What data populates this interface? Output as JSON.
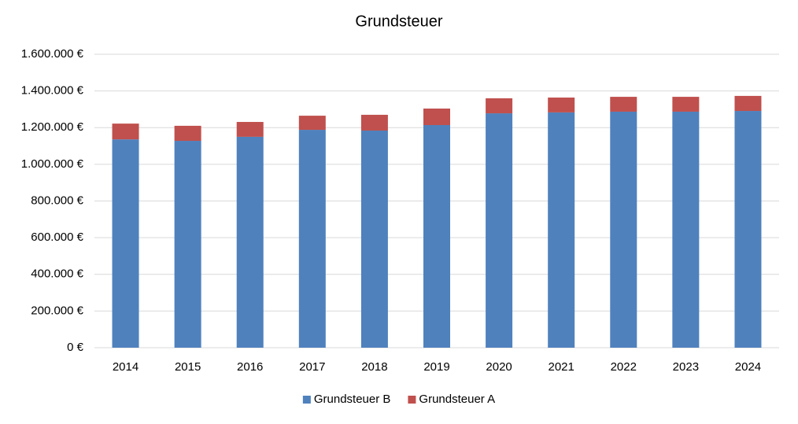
{
  "chart_data": {
    "type": "stacked_bar",
    "title": "Grundsteuer",
    "categories": [
      "2014",
      "2015",
      "2016",
      "2017",
      "2018",
      "2019",
      "2020",
      "2021",
      "2022",
      "2023",
      "2024"
    ],
    "series": [
      {
        "name": "Grundsteuer B",
        "color": "#4f81bd",
        "values": [
          1136000,
          1128000,
          1150000,
          1188000,
          1184000,
          1214000,
          1278000,
          1283000,
          1287000,
          1287000,
          1291000
        ]
      },
      {
        "name": "Grundsteuer A",
        "color": "#c0504d",
        "values": [
          86000,
          82000,
          81000,
          77000,
          86000,
          90000,
          82000,
          81000,
          81000,
          81000,
          82000
        ]
      }
    ],
    "ylim": [
      0,
      1600000
    ],
    "yticks": [
      {
        "value": 0,
        "label": "0 €"
      },
      {
        "value": 200000,
        "label": "200.000 €"
      },
      {
        "value": 400000,
        "label": "400.000 €"
      },
      {
        "value": 600000,
        "label": "600.000 €"
      },
      {
        "value": 800000,
        "label": "800.000 €"
      },
      {
        "value": 1000000,
        "label": "1.000.000 €"
      },
      {
        "value": 1200000,
        "label": "1.200.000 €"
      },
      {
        "value": 1400000,
        "label": "1.400.000 €"
      },
      {
        "value": 1600000,
        "label": "1.600.000 €"
      }
    ],
    "grid": true,
    "legend": "bottom"
  }
}
